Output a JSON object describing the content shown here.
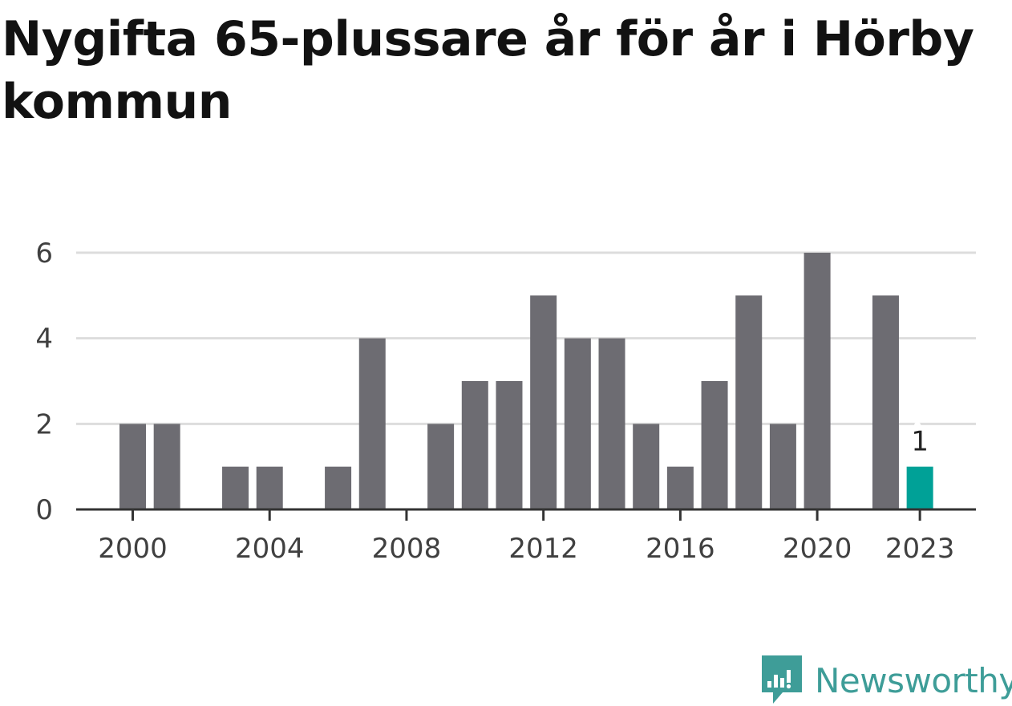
{
  "chart_data": {
    "type": "bar",
    "title": "Nygifta 65-plussare år för år i Hörby kommun",
    "x": [
      2000,
      2001,
      2002,
      2003,
      2004,
      2005,
      2006,
      2007,
      2008,
      2009,
      2010,
      2011,
      2012,
      2013,
      2014,
      2015,
      2016,
      2017,
      2018,
      2019,
      2020,
      2021,
      2022,
      2023
    ],
    "values": [
      2,
      2,
      0,
      1,
      1,
      0,
      1,
      4,
      0,
      2,
      3,
      3,
      5,
      4,
      4,
      2,
      1,
      3,
      5,
      2,
      6,
      0,
      5,
      1
    ],
    "xticks": [
      "2000",
      "2004",
      "2008",
      "2012",
      "2016",
      "2020",
      "2023"
    ],
    "yticks": [
      "0",
      "2",
      "4",
      "6"
    ],
    "ylim": [
      0,
      6
    ],
    "grid": true,
    "highlight": {
      "x": 2023,
      "label": "1"
    },
    "colors": {
      "bar": "#6d6c72",
      "highlight": "#00a197",
      "grid": "#dddddd",
      "axis": "#333333"
    }
  },
  "brand": {
    "name": "Newsworthy",
    "icon": "newsworthy-logo-icon",
    "color": "#3e9d98"
  }
}
